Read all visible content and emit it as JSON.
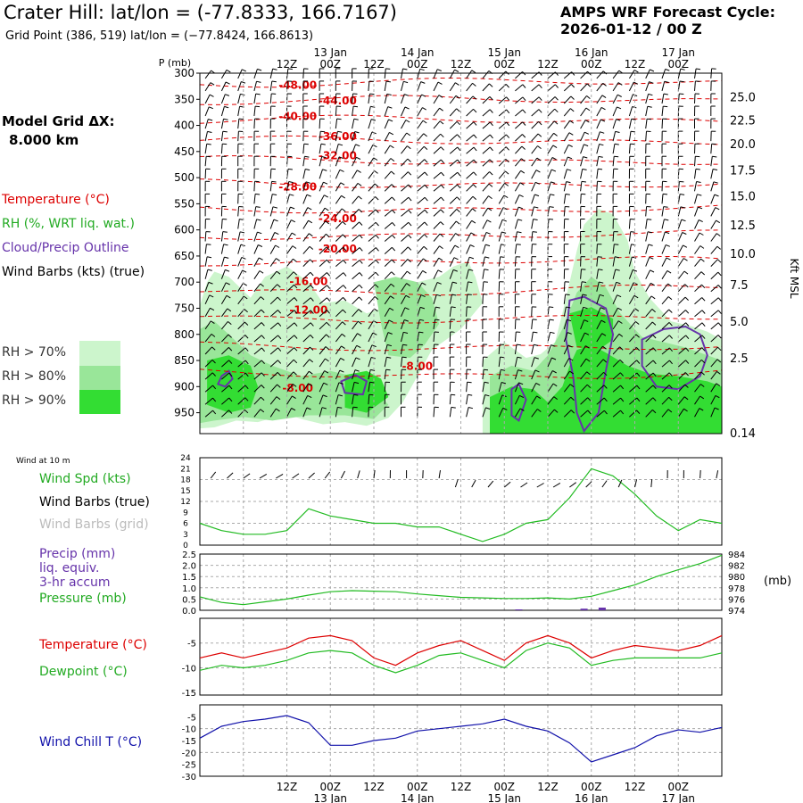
{
  "header": {
    "title": "Crater Hill:  lat/lon = (-77.8333, 166.7167)",
    "subtitle": "Grid Point (386, 519) lat/lon = (−77.8424, 166.8613)",
    "cycle_line1": "AMPS WRF Forecast Cycle:",
    "cycle_line2": "2026-01-12 / 00  Z"
  },
  "model_grid": {
    "line1": "Model Grid ΔX:",
    "line2": "8.000 km"
  },
  "legend": {
    "temperature": "Temperature (°C)",
    "rh": "RH (%, WRT liq. wat.)",
    "cloud": "Cloud/Precip Outline",
    "wind": "Wind Barbs (kts) (true)",
    "rh70": "RH > 70%",
    "rh80": "RH > 80%",
    "rh90": "RH > 90%"
  },
  "colors": {
    "rh70": "#ccf5cc",
    "rh80": "#99e699",
    "rh90": "#33dd33",
    "temp": "#dd0000",
    "green": "#22bb22",
    "purple": "#6633aa",
    "blue": "#1111aa",
    "grid": "#aaaaaa"
  },
  "time_axis": {
    "tick_labels": [
      "12Z",
      "00Z",
      "12Z",
      "00Z",
      "12Z",
      "00Z",
      "12Z",
      "00Z",
      "12Z",
      "00Z"
    ],
    "date_labels": [
      "13 Jan",
      "14 Jan",
      "15 Jan",
      "16 Jan",
      "17 Jan"
    ],
    "date_label_hours": [
      36,
      60,
      84,
      108,
      132
    ]
  },
  "chart_data": [
    {
      "type": "heatmap",
      "name": "time-height cross section",
      "ylabel": "P (mb)",
      "right_axis_label": "Kft MSL",
      "y_ticks": [
        "300",
        "350",
        "400",
        "450",
        "500",
        "550",
        "600",
        "650",
        "700",
        "750",
        "800",
        "850",
        "900",
        "950"
      ],
      "ylim": [
        300,
        990
      ],
      "right_ticks": [
        "25.0",
        "22.5",
        "20.0",
        "17.5",
        "15.0",
        "12.5",
        "10.0",
        "7.5",
        "5.0",
        "2.5",
        "0.14"
      ],
      "right_tick_pressures": [
        345,
        390,
        435,
        485,
        535,
        590,
        645,
        705,
        775,
        845,
        988
      ],
      "xlim": [
        0,
        144
      ],
      "isotherm_labels": [
        {
          "text": "-48.00",
          "t": 27,
          "p": 330
        },
        {
          "text": "-44.00",
          "t": 38,
          "p": 360
        },
        {
          "text": "-40.00",
          "t": 27,
          "p": 390
        },
        {
          "text": "-36.00",
          "t": 38,
          "p": 428
        },
        {
          "text": "-32.00",
          "t": 38,
          "p": 465
        },
        {
          "text": "-28.00",
          "t": 27,
          "p": 525
        },
        {
          "text": "-24.00",
          "t": 38,
          "p": 585
        },
        {
          "text": "-20.00",
          "t": 38,
          "p": 643
        },
        {
          "text": "-16.00",
          "t": 30,
          "p": 706
        },
        {
          "text": "-12.00",
          "t": 30,
          "p": 760
        },
        {
          "text": "-8.00",
          "t": 27,
          "p": 910
        },
        {
          "text": "-8.00",
          "t": 60,
          "p": 868
        }
      ]
    },
    {
      "type": "line",
      "name": "wind at 10 m",
      "corner_label": "Wind at 10 m",
      "labels": [
        "Wind Spd (kts)",
        "Wind Barbs (true)",
        "Wind Barbs (grid)"
      ],
      "y_ticks": [
        "0",
        "3",
        "6",
        "9",
        "12",
        "15",
        "18",
        "21",
        "24"
      ],
      "ylim": [
        0,
        24
      ],
      "x": [
        0,
        6,
        12,
        18,
        24,
        30,
        36,
        42,
        48,
        54,
        60,
        66,
        72,
        78,
        84,
        90,
        96,
        102,
        108,
        114,
        120,
        126,
        132,
        138,
        144
      ],
      "series": [
        {
          "name": "Wind Spd (kts)",
          "values": [
            6,
            4,
            3,
            3,
            4,
            10,
            8,
            7,
            6,
            6,
            5,
            5,
            3,
            1,
            3,
            6,
            7,
            13,
            21,
            19,
            14,
            8,
            4,
            7,
            6
          ]
        }
      ]
    },
    {
      "type": "line",
      "name": "precip and pressure",
      "labels": [
        "Precip (mm)",
        "liq. equiv.",
        "3-hr accum",
        "Pressure (mb)"
      ],
      "left_ticks": [
        "0.0",
        "0.5",
        "1.0",
        "1.5",
        "2.0",
        "2.5"
      ],
      "ylim_left": [
        0,
        2.5
      ],
      "right_ticks": [
        "974",
        "976",
        "978",
        "980",
        "982",
        "984"
      ],
      "ylim_right": [
        974,
        984
      ],
      "right_unit": "(mb)",
      "x": [
        0,
        6,
        12,
        18,
        24,
        30,
        36,
        42,
        48,
        54,
        60,
        66,
        72,
        78,
        84,
        90,
        96,
        102,
        108,
        114,
        120,
        126,
        132,
        138,
        144
      ],
      "series": [
        {
          "name": "Pressure (mb)",
          "values": [
            976.4,
            975.4,
            975.0,
            975.5,
            976.0,
            976.7,
            977.3,
            977.5,
            977.4,
            977.3,
            976.9,
            976.6,
            976.3,
            976.2,
            976.1,
            976.1,
            976.2,
            976.0,
            976.5,
            977.5,
            978.5,
            980.0,
            981.2,
            982.3,
            983.8
          ]
        },
        {
          "name": "Precip (mm)",
          "bars": [
            {
              "t": 88,
              "v": 0.04
            },
            {
              "t": 106,
              "v": 0.07
            },
            {
              "t": 111,
              "v": 0.12
            }
          ]
        }
      ]
    },
    {
      "type": "line",
      "name": "temperature and dewpoint",
      "labels": [
        "Temperature (°C)",
        "Dewpoint (°C)"
      ],
      "y_ticks": [
        "-5",
        "-10",
        "-15"
      ],
      "ylim": [
        -15.5,
        0
      ],
      "x": [
        0,
        6,
        12,
        18,
        24,
        30,
        36,
        42,
        48,
        54,
        60,
        66,
        72,
        78,
        84,
        90,
        96,
        102,
        108,
        114,
        120,
        126,
        132,
        138,
        144
      ],
      "series": [
        {
          "name": "Temperature (°C)",
          "values": [
            -8,
            -7,
            -8,
            -7,
            -6,
            -4,
            -3.5,
            -4.5,
            -8,
            -9.5,
            -7,
            -5.5,
            -4.5,
            -6.5,
            -8.5,
            -5,
            -3.5,
            -5,
            -8,
            -6.5,
            -5.5,
            -6,
            -6.5,
            -5.5,
            -3.5
          ]
        },
        {
          "name": "Dewpoint (°C)",
          "values": [
            -10.5,
            -9.5,
            -10,
            -9.5,
            -8.5,
            -7,
            -6.5,
            -7,
            -9.5,
            -11,
            -9.5,
            -7.5,
            -7,
            -8.5,
            -10,
            -6.5,
            -5,
            -6,
            -9.5,
            -8.5,
            -8,
            -8,
            -8,
            -8,
            -7
          ]
        }
      ]
    },
    {
      "type": "line",
      "name": "wind chill",
      "labels": [
        "Wind Chill T (°C)"
      ],
      "y_ticks": [
        "-5",
        "-10",
        "-15",
        "-20",
        "-25",
        "-30"
      ],
      "ylim": [
        -30,
        0
      ],
      "x": [
        0,
        6,
        12,
        18,
        24,
        30,
        36,
        42,
        48,
        54,
        60,
        66,
        72,
        78,
        84,
        90,
        96,
        102,
        108,
        114,
        120,
        126,
        132,
        138,
        144
      ],
      "series": [
        {
          "name": "Wind Chill T (°C)",
          "values": [
            -14,
            -9,
            -7,
            -6,
            -4.5,
            -7.5,
            -17,
            -17,
            -15,
            -14,
            -11,
            -10,
            -9,
            -8,
            -6,
            -9,
            -11,
            -16,
            -24,
            -21,
            -18,
            -13,
            -10.5,
            -11.5,
            -9.5
          ]
        }
      ]
    }
  ]
}
